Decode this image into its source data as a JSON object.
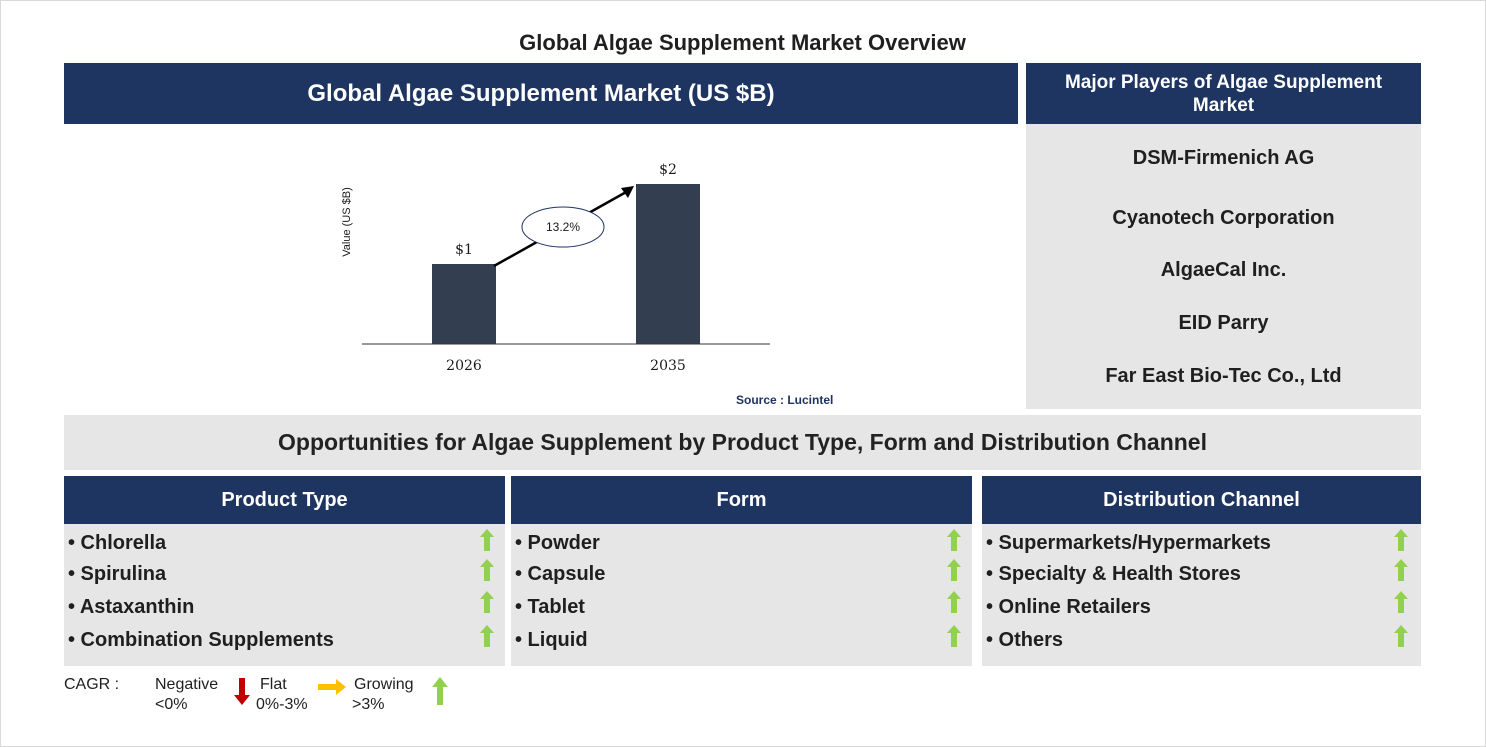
{
  "title": "Global Algae Supplement Market Overview",
  "chart_panel_title": "Global Algae Supplement Market (US $B)",
  "players_title": "Major Players of Algae Supplement Market",
  "players": [
    "DSM-Firmenich AG",
    "Cyanotech Corporation",
    "AlgaeCal Inc.",
    "EID Parry",
    "Far East Bio-Tec Co., Ltd"
  ],
  "source": "Source : Lucintel",
  "opportunities_title": "Opportunities for Algae Supplement by Product Type, Form and Distribution Channel",
  "segments": [
    {
      "title": "Product Type",
      "items": [
        "• Chlorella",
        "• Spirulina",
        "• Astaxanthin",
        "• Combination Supplements"
      ]
    },
    {
      "title": "Form",
      "items": [
        "• Powder",
        "• Capsule",
        "• Tablet",
        "• Liquid"
      ]
    },
    {
      "title": "Distribution Channel",
      "items": [
        "• Supermarkets/Hypermarkets",
        "• Specialty & Health Stores",
        "• Online Retailers",
        "• Others"
      ]
    }
  ],
  "legend": {
    "cagr_label": "CAGR :",
    "negative": "Negative",
    "negative_range": "<0%",
    "flat": "Flat",
    "flat_range": "0%-3%",
    "growing": "Growing",
    "growing_range": ">3%"
  },
  "colors": {
    "navy": "#1e3461",
    "bar": "#333f50",
    "grey_panel": "#e6e6e6",
    "up_arrow": "#92d050",
    "down_arrow": "#c00000",
    "flat_arrow": "#ffc000"
  },
  "chart_data": {
    "type": "bar",
    "categories": [
      "2026",
      "2035"
    ],
    "values": [
      1,
      2
    ],
    "value_labels": [
      "$1",
      "$2"
    ],
    "ylabel": "Value (US $B)",
    "xlabel": "",
    "cagr_annotation": "13.2%"
  }
}
